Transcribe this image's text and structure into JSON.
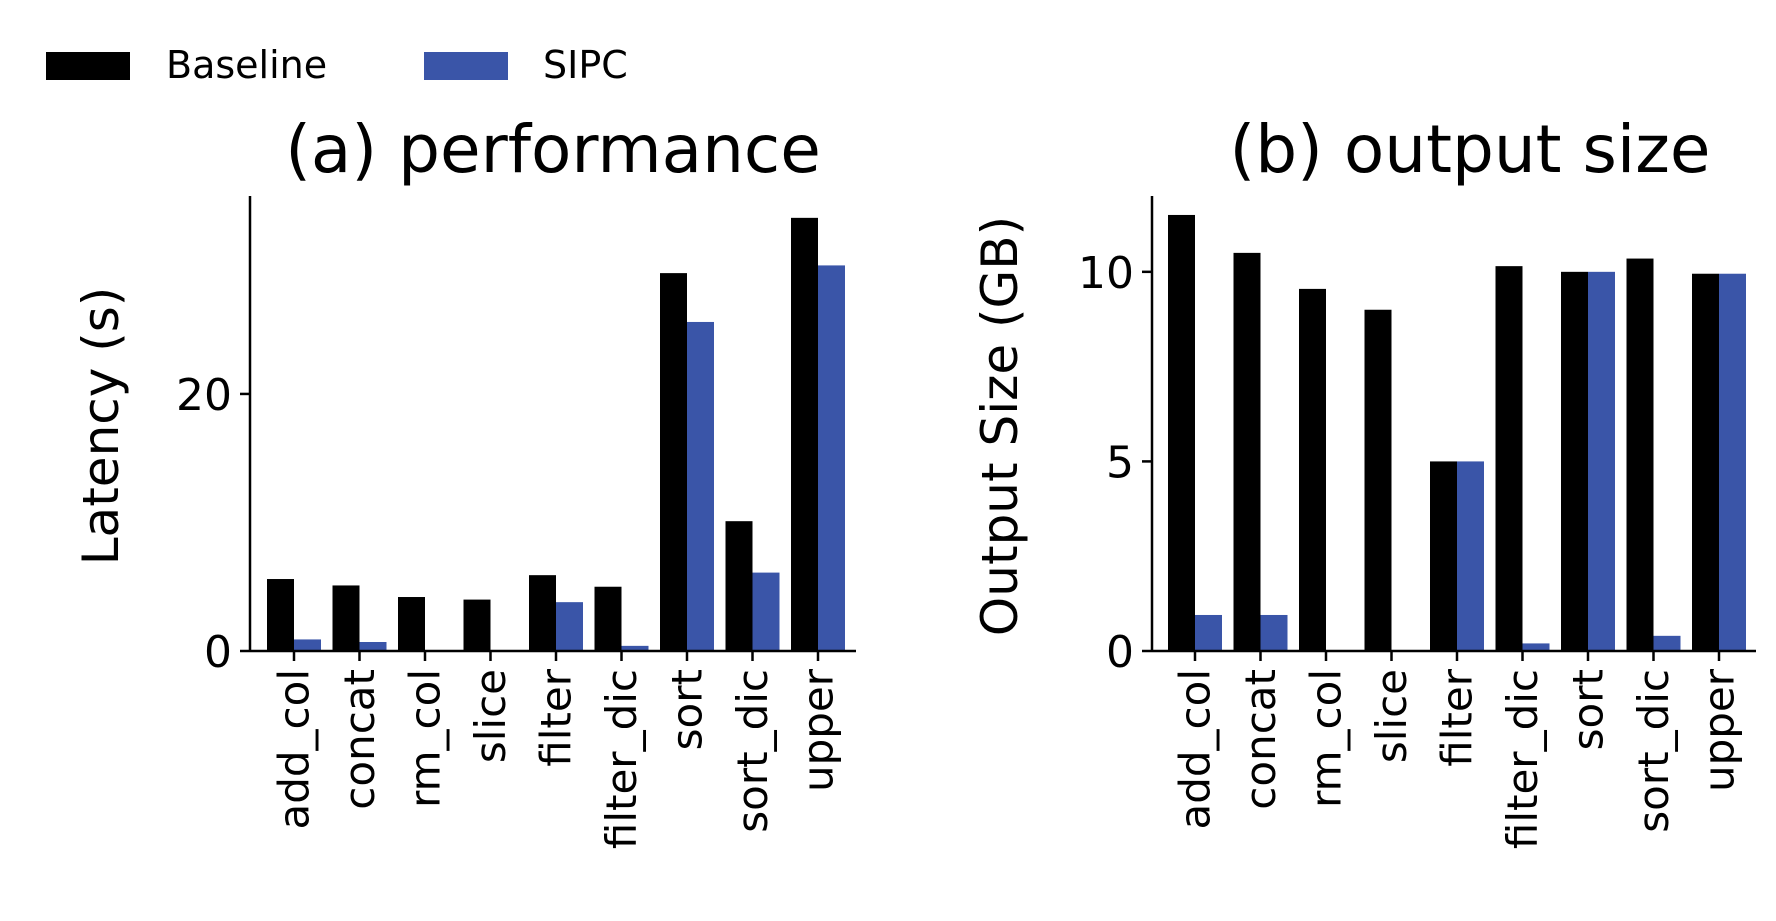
{
  "legend": {
    "items": [
      {
        "label": "Baseline",
        "color": "#000000"
      },
      {
        "label": "SIPC",
        "color": "#3a55a8"
      }
    ],
    "placement": "top-left"
  },
  "chart_data": [
    {
      "type": "bar",
      "title": "(a) performance",
      "xlabel": "",
      "ylabel": "Latency (s)",
      "ylim": [
        0,
        35.4
      ],
      "yticks": [
        0,
        20
      ],
      "categories": [
        "add_col",
        "concat",
        "rm_col",
        "slice",
        "filter",
        "filter_dic",
        "sort",
        "sort_dic",
        "upper"
      ],
      "series": [
        {
          "name": "Baseline",
          "color": "#000000",
          "values": [
            5.6,
            5.1,
            4.2,
            4.0,
            5.9,
            5.0,
            29.4,
            10.1,
            33.7
          ]
        },
        {
          "name": "SIPC",
          "color": "#3a55a8",
          "values": [
            0.9,
            0.7,
            0.0,
            0.0,
            3.8,
            0.4,
            25.6,
            6.1,
            30.0
          ]
        }
      ],
      "grid": false
    },
    {
      "type": "bar",
      "title": "(b) output size",
      "xlabel": "",
      "ylabel": "Output Size (GB)",
      "ylim": [
        0,
        12.0
      ],
      "yticks": [
        0,
        5,
        10
      ],
      "categories": [
        "add_col",
        "concat",
        "rm_col",
        "slice",
        "filter",
        "filter_dic",
        "sort",
        "sort_dic",
        "upper"
      ],
      "series": [
        {
          "name": "Baseline",
          "color": "#000000",
          "values": [
            11.5,
            10.5,
            9.55,
            9.0,
            5.0,
            10.15,
            10.0,
            10.35,
            9.95
          ]
        },
        {
          "name": "SIPC",
          "color": "#3a55a8",
          "values": [
            0.95,
            0.95,
            0.0,
            0.0,
            5.0,
            0.2,
            10.0,
            0.4,
            9.95
          ]
        }
      ],
      "grid": false
    }
  ]
}
